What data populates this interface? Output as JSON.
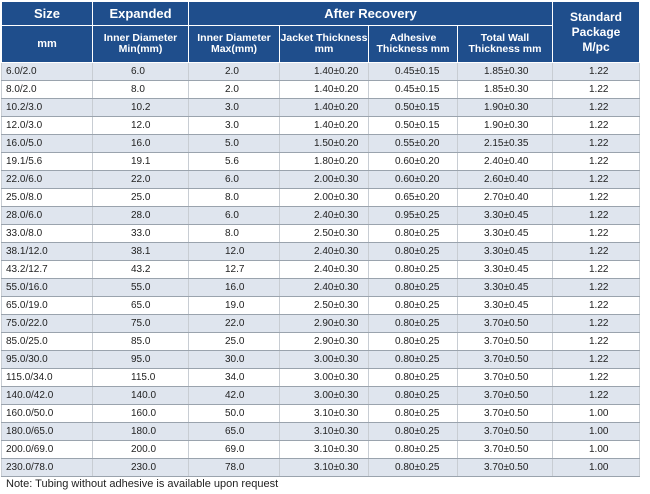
{
  "headers": {
    "size": "Size",
    "expanded": "Expanded",
    "after_recovery": "After Recovery",
    "standard_package": "Standard Package",
    "mm": "mm",
    "inner_min": "Inner Diameter Min(mm)",
    "inner_max": "Inner Diameter Max(mm)",
    "jacket": "Jacket Thickness mm",
    "adhesive": "Adhesive Thickness mm",
    "total": "Total Wall Thickness mm",
    "mpc": "M/pc"
  },
  "rows": [
    [
      "6.0/2.0",
      "6.0",
      "2.0",
      "1.40±0.20",
      "0.45±0.15",
      "1.85±0.30",
      "1.22"
    ],
    [
      "8.0/2.0",
      "8.0",
      "2.0",
      "1.40±0.20",
      "0.45±0.15",
      "1.85±0.30",
      "1.22"
    ],
    [
      "10.2/3.0",
      "10.2",
      "3.0",
      "1.40±0.20",
      "0.50±0.15",
      "1.90±0.30",
      "1.22"
    ],
    [
      "12.0/3.0",
      "12.0",
      "3.0",
      "1.40±0.20",
      "0.50±0.15",
      "1.90±0.30",
      "1.22"
    ],
    [
      "16.0/5.0",
      "16.0",
      "5.0",
      "1.50±0.20",
      "0.55±0.20",
      "2.15±0.35",
      "1.22"
    ],
    [
      "19.1/5.6",
      "19.1",
      "5.6",
      "1.80±0.20",
      "0.60±0.20",
      "2.40±0.40",
      "1.22"
    ],
    [
      "22.0/6.0",
      "22.0",
      "6.0",
      "2.00±0.30",
      "0.60±0.20",
      "2.60±0.40",
      "1.22"
    ],
    [
      "25.0/8.0",
      "25.0",
      "8.0",
      "2.00±0.30",
      "0.65±0.20",
      "2.70±0.40",
      "1.22"
    ],
    [
      "28.0/6.0",
      "28.0",
      "6.0",
      "2.40±0.30",
      "0.95±0.25",
      "3.30±0.45",
      "1.22"
    ],
    [
      "33.0/8.0",
      "33.0",
      "8.0",
      "2.50±0.30",
      "0.80±0.25",
      "3.30±0.45",
      "1.22"
    ],
    [
      "38.1/12.0",
      "38.1",
      "12.0",
      "2.40±0.30",
      "0.80±0.25",
      "3.30±0.45",
      "1.22"
    ],
    [
      "43.2/12.7",
      "43.2",
      "12.7",
      "2.40±0.30",
      "0.80±0.25",
      "3.30±0.45",
      "1.22"
    ],
    [
      "55.0/16.0",
      "55.0",
      "16.0",
      "2.40±0.30",
      "0.80±0.25",
      "3.30±0.45",
      "1.22"
    ],
    [
      "65.0/19.0",
      "65.0",
      "19.0",
      "2.50±0.30",
      "0.80±0.25",
      "3.30±0.45",
      "1.22"
    ],
    [
      "75.0/22.0",
      "75.0",
      "22.0",
      "2.90±0.30",
      "0.80±0.25",
      "3.70±0.50",
      "1.22"
    ],
    [
      "85.0/25.0",
      "85.0",
      "25.0",
      "2.90±0.30",
      "0.80±0.25",
      "3.70±0.50",
      "1.22"
    ],
    [
      "95.0/30.0",
      "95.0",
      "30.0",
      "3.00±0.30",
      "0.80±0.25",
      "3.70±0.50",
      "1.22"
    ],
    [
      "115.0/34.0",
      "115.0",
      "34.0",
      "3.00±0.30",
      "0.80±0.25",
      "3.70±0.50",
      "1.22"
    ],
    [
      "140.0/42.0",
      "140.0",
      "42.0",
      "3.00±0.30",
      "0.80±0.25",
      "3.70±0.50",
      "1.22"
    ],
    [
      "160.0/50.0",
      "160.0",
      "50.0",
      "3.10±0.30",
      "0.80±0.25",
      "3.70±0.50",
      "1.00"
    ],
    [
      "180.0/65.0",
      "180.0",
      "65.0",
      "3.10±0.30",
      "0.80±0.25",
      "3.70±0.50",
      "1.00"
    ],
    [
      "200.0/69.0",
      "200.0",
      "69.0",
      "3.10±0.30",
      "0.80±0.25",
      "3.70±0.50",
      "1.00"
    ],
    [
      "230.0/78.0",
      "230.0",
      "78.0",
      "3.10±0.30",
      "0.80±0.25",
      "3.70±0.50",
      "1.00"
    ]
  ],
  "note": "Note: Tubing without adhesive is available upon request",
  "colors": {
    "header_bg": "#1f4e8c",
    "header_text": "#ffffff",
    "stripe": "#dfe5ee"
  }
}
